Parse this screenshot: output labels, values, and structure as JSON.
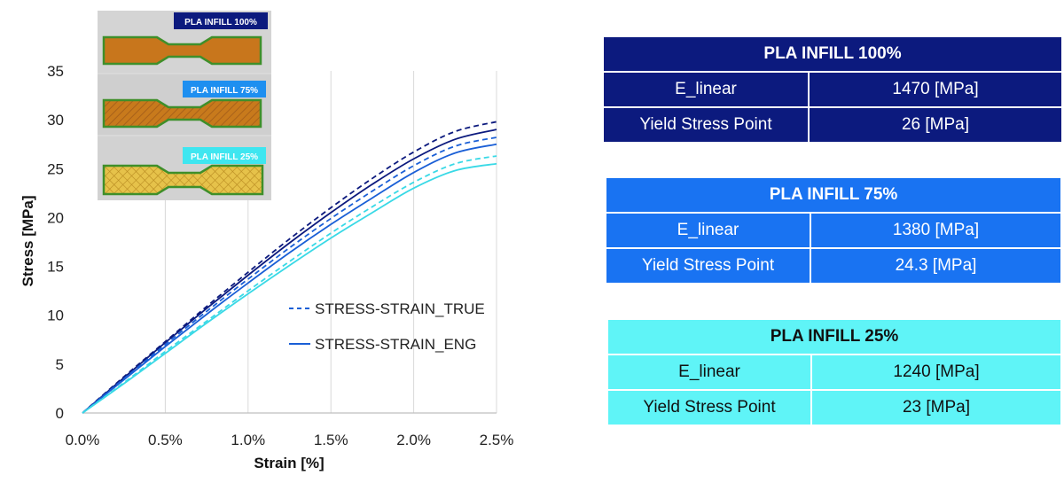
{
  "chart_data": {
    "type": "line",
    "xlabel": "Strain [%]",
    "ylabel": "Stress [MPa]",
    "xlim": [
      0,
      2.5
    ],
    "ylim": [
      0,
      35
    ],
    "x_ticks": [
      "0.0%",
      "0.5%",
      "1.0%",
      "1.5%",
      "2.0%",
      "2.5%"
    ],
    "y_ticks": [
      "0",
      "5",
      "10",
      "15",
      "20",
      "25",
      "30",
      "35"
    ],
    "grid": "vertical",
    "legend_position": "center-right",
    "legend": [
      {
        "label": "STRESS-STRAIN_TRUE",
        "style": "dashed"
      },
      {
        "label": "STRESS-STRAIN_ENG",
        "style": "solid"
      }
    ],
    "x": [
      0,
      0.25,
      0.5,
      0.75,
      1.0,
      1.25,
      1.5,
      1.75,
      2.0,
      2.25,
      2.5
    ],
    "series": [
      {
        "infill": "PLA INFILL 100%",
        "type": "TRUE",
        "color": "#0c1a7e",
        "values": [
          0,
          3.7,
          7.3,
          10.9,
          14.4,
          17.8,
          21.0,
          24.0,
          26.7,
          28.8,
          29.8
        ]
      },
      {
        "infill": "PLA INFILL 100%",
        "type": "ENG",
        "color": "#0c1a7e",
        "values": [
          0,
          3.6,
          7.2,
          10.7,
          14.1,
          17.4,
          20.5,
          23.4,
          26.0,
          28.0,
          29.0
        ]
      },
      {
        "infill": "PLA INFILL 75%",
        "type": "TRUE",
        "color": "#1a5fd6",
        "values": [
          0,
          3.5,
          7.0,
          10.4,
          13.7,
          16.9,
          19.9,
          22.7,
          25.3,
          27.3,
          28.2
        ]
      },
      {
        "infill": "PLA INFILL 75%",
        "type": "ENG",
        "color": "#1a5fd6",
        "values": [
          0,
          3.4,
          6.8,
          10.1,
          13.3,
          16.4,
          19.3,
          22.0,
          24.6,
          26.6,
          27.5
        ]
      },
      {
        "infill": "PLA INFILL 25%",
        "type": "TRUE",
        "color": "#39d9e6",
        "values": [
          0,
          3.1,
          6.3,
          9.4,
          12.5,
          15.5,
          18.4,
          21.1,
          23.6,
          25.5,
          26.3
        ]
      },
      {
        "infill": "PLA INFILL 25%",
        "type": "ENG",
        "color": "#39d9e6",
        "values": [
          0,
          3.0,
          6.1,
          9.2,
          12.2,
          15.1,
          17.9,
          20.5,
          23.0,
          24.8,
          25.5
        ]
      }
    ]
  },
  "inset": {
    "labels": [
      "PLA INFILL 100%",
      "PLA INFILL 75%",
      "PLA INFILL 25%"
    ],
    "label_colors": [
      "#0c1a7e",
      "#1e8ff0",
      "#3fe6f0"
    ]
  },
  "tables": [
    {
      "title": "PLA INFILL 100%",
      "rows": [
        {
          "label": "E_linear",
          "value": "1470 [MPa]"
        },
        {
          "label": "Yield Stress Point",
          "value": "26 [MPa]"
        }
      ]
    },
    {
      "title": "PLA INFILL 75%",
      "rows": [
        {
          "label": "E_linear",
          "value": "1380 [MPa]"
        },
        {
          "label": "Yield Stress Point",
          "value": "24.3 [MPa]"
        }
      ]
    },
    {
      "title": "PLA INFILL 25%",
      "rows": [
        {
          "label": "E_linear",
          "value": "1240 [MPa]"
        },
        {
          "label": "Yield Stress Point",
          "value": "23 [MPa]"
        }
      ]
    }
  ]
}
